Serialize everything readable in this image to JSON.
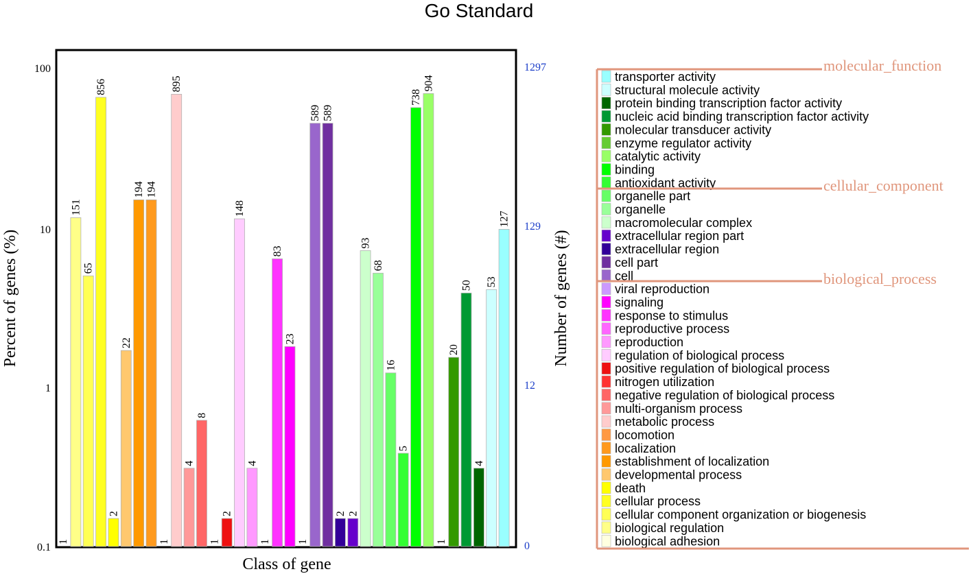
{
  "chart_data": {
    "type": "bar",
    "title": "Go Standard",
    "xlabel": "Class of gene",
    "ylabel": "Percent of genes (%)",
    "y2label": "Number of genes (#)",
    "yscale": "log",
    "ylim": [
      0.1,
      100
    ],
    "y_ticks": [
      "100",
      "10",
      "1",
      "0.1"
    ],
    "y2_ticks": [
      "1297",
      "129",
      "12",
      "0"
    ],
    "bars": [
      {
        "category": "biological adhesion",
        "count": "1",
        "percent": 0.1,
        "color": "#ffffe0"
      },
      {
        "category": "biological regulation",
        "count": "151",
        "percent": 11.6,
        "color": "#ffff88"
      },
      {
        "category": "cellular component organization or biogenesis",
        "count": "65",
        "percent": 5.0,
        "color": "#ffff55"
      },
      {
        "category": "cellular process",
        "count": "856",
        "percent": 66.0,
        "color": "#ffff22"
      },
      {
        "category": "death",
        "count": "2",
        "percent": 0.15,
        "color": "#ffff00"
      },
      {
        "category": "developmental process",
        "count": "22",
        "percent": 1.7,
        "color": "#ffc86e"
      },
      {
        "category": "establishment of localization",
        "count": "194",
        "percent": 15.0,
        "color": "#ff9900"
      },
      {
        "category": "localization",
        "count": "194",
        "percent": 15.0,
        "color": "#ff9a1e"
      },
      {
        "category": "locomotion",
        "count": "1",
        "percent": 0.1,
        "color": "#ff9944"
      },
      {
        "category": "metabolic process",
        "count": "895",
        "percent": 69.0,
        "color": "#ffcccc"
      },
      {
        "category": "multi-organism process",
        "count": "4",
        "percent": 0.31,
        "color": "#ff9999"
      },
      {
        "category": "negative regulation of biological process",
        "count": "8",
        "percent": 0.62,
        "color": "#ff6666"
      },
      {
        "category": "nitrogen utilization",
        "count": "1",
        "percent": 0.1,
        "color": "#ff3333"
      },
      {
        "category": "positive regulation of biological process",
        "count": "2",
        "percent": 0.15,
        "color": "#ee1111"
      },
      {
        "category": "regulation of biological process",
        "count": "148",
        "percent": 11.4,
        "color": "#ffccff"
      },
      {
        "category": "reproduction",
        "count": "4",
        "percent": 0.31,
        "color": "#ff99ff"
      },
      {
        "category": "reproductive process",
        "count": "1",
        "percent": 0.1,
        "color": "#ff66ff"
      },
      {
        "category": "response to stimulus",
        "count": "83",
        "percent": 6.4,
        "color": "#ff33ff"
      },
      {
        "category": "signaling",
        "count": "23",
        "percent": 1.8,
        "color": "#ff00ff"
      },
      {
        "category": "viral reproduction",
        "count": "1",
        "percent": 0.1,
        "color": "#cc99ff"
      },
      {
        "category": "cell",
        "count": "589",
        "percent": 45.4,
        "color": "#9966cc"
      },
      {
        "category": "cell part",
        "count": "589",
        "percent": 45.4,
        "color": "#7030a0"
      },
      {
        "category": "extracellular region",
        "count": "2",
        "percent": 0.15,
        "color": "#330099"
      },
      {
        "category": "extracellular region part",
        "count": "2",
        "percent": 0.15,
        "color": "#6600cc"
      },
      {
        "category": "macromolecular complex",
        "count": "93",
        "percent": 7.2,
        "color": "#ccffcc"
      },
      {
        "category": "organelle",
        "count": "68",
        "percent": 5.2,
        "color": "#99ff99"
      },
      {
        "category": "organelle part",
        "count": "16",
        "percent": 1.23,
        "color": "#66ff66"
      },
      {
        "category": "antioxidant activity",
        "count": "5",
        "percent": 0.385,
        "color": "#33ff33"
      },
      {
        "category": "binding",
        "count": "738",
        "percent": 56.9,
        "color": "#00ff00"
      },
      {
        "category": "catalytic activity",
        "count": "904",
        "percent": 69.7,
        "color": "#99ff66"
      },
      {
        "category": "enzyme regulator activity",
        "count": "1",
        "percent": 0.1,
        "color": "#66cc33"
      },
      {
        "category": "molecular transducer activity",
        "count": "20",
        "percent": 1.54,
        "color": "#339900"
      },
      {
        "category": "nucleic acid binding transcription factor activity",
        "count": "50",
        "percent": 3.9,
        "color": "#009933"
      },
      {
        "category": "protein binding transcription factor activity",
        "count": "4",
        "percent": 0.31,
        "color": "#006600"
      },
      {
        "category": "structural molecule activity",
        "count": "53",
        "percent": 4.1,
        "color": "#ccffff"
      },
      {
        "category": "transporter activity",
        "count": "127",
        "percent": 9.8,
        "color": "#99ffff"
      }
    ],
    "groups": [
      "molecular_function",
      "cellular_component",
      "biological_process"
    ]
  }
}
